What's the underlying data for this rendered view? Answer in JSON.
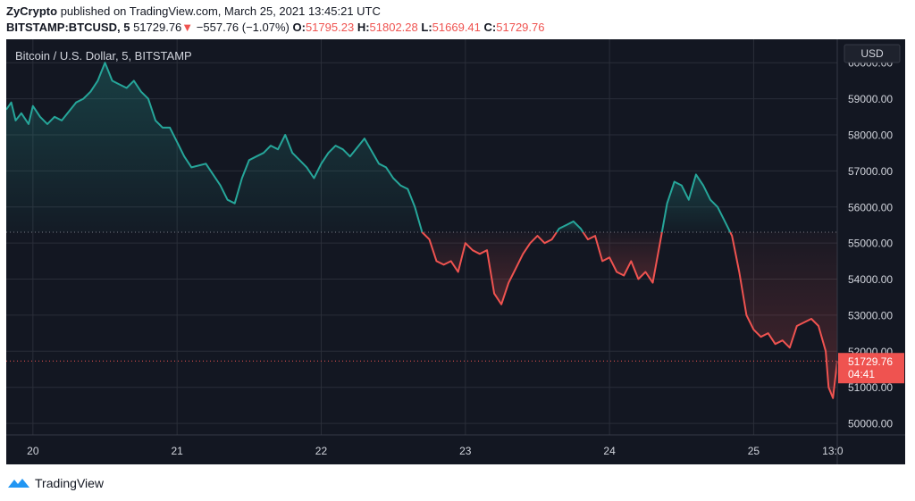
{
  "header": {
    "author": "ZyCrypto",
    "published_text": "published on TradingView.com, March 25, 2021 13:45:21 UTC"
  },
  "quote": {
    "symbol": "BITSTAMP:BTCUSD, 5",
    "last": "51729.76",
    "change_arrow": "▼",
    "change": "−557.76 (−1.07%)",
    "o_label": "O:",
    "o_value": "51795.23",
    "h_label": "H:",
    "h_value": "51802.28",
    "l_label": "L:",
    "l_value": "51669.41",
    "c_label": "C:",
    "c_value": "51729.76"
  },
  "footer": {
    "brand": "TradingView"
  },
  "colors": {
    "up": "#26a69a",
    "down": "#ef5350",
    "background": "#131722",
    "grid": "#2a2e39",
    "axis_text": "#d1d4dc"
  },
  "chart_data": {
    "type": "line",
    "title": "Bitcoin / U.S. Dollar, 5, BITSTAMP",
    "currency_label": "USD",
    "x_ticks": [
      "20",
      "21",
      "22",
      "23",
      "24",
      "25",
      "13:0"
    ],
    "x_tick_days": [
      0,
      1,
      2,
      3,
      4,
      5,
      5.548
    ],
    "x_range_days": [
      -0.185,
      5.58
    ],
    "ylim": [
      49680,
      60650
    ],
    "y_ticks": [
      50000,
      51000,
      52000,
      53000,
      54000,
      55000,
      56000,
      57000,
      58000,
      59000,
      60000
    ],
    "y_tick_labels": [
      "50000.00",
      "51000.00",
      "52000.00",
      "53000.00",
      "54000.00",
      "55000.00",
      "56000.00",
      "57000.00",
      "58000.00",
      "59000.00",
      "60000.00"
    ],
    "baseline": 55300,
    "last_value": 51729.76,
    "last_label": "51729.76",
    "countdown": "04:41",
    "grid": true,
    "series": [
      {
        "x_days": [
          -0.185,
          -0.15,
          -0.12,
          -0.08,
          -0.03,
          0.0,
          0.05,
          0.1,
          0.15,
          0.2,
          0.3,
          0.35,
          0.4,
          0.45,
          0.5,
          0.55,
          0.6,
          0.65,
          0.7,
          0.75,
          0.8,
          0.85,
          0.9,
          0.95,
          1.0,
          1.05,
          1.1,
          1.2,
          1.3,
          1.35,
          1.4,
          1.45,
          1.5,
          1.55,
          1.6,
          1.65,
          1.7,
          1.75,
          1.8,
          1.85,
          1.9,
          1.95,
          2.0,
          2.05,
          2.1,
          2.15,
          2.2,
          2.3,
          2.4,
          2.45,
          2.5,
          2.55,
          2.6,
          2.65,
          2.7,
          2.75,
          2.8,
          2.85,
          2.9,
          2.95,
          3.0,
          3.05,
          3.1,
          3.15,
          3.2,
          3.25,
          3.3,
          3.35,
          3.4,
          3.45,
          3.5,
          3.55,
          3.6,
          3.65,
          3.7,
          3.75,
          3.8,
          3.85,
          3.9,
          3.95,
          4.0,
          4.05,
          4.1,
          4.15,
          4.2,
          4.25,
          4.3,
          4.35,
          4.4,
          4.45,
          4.5,
          4.55,
          4.6,
          4.65,
          4.7,
          4.75,
          4.8,
          4.85,
          4.9,
          4.95,
          5.0,
          5.05,
          5.1,
          5.15,
          5.2,
          5.25,
          5.3,
          5.35,
          5.4,
          5.45,
          5.5,
          5.52,
          5.55,
          5.58
        ],
        "y": [
          58700,
          58900,
          58400,
          58600,
          58300,
          58800,
          58500,
          58300,
          58500,
          58400,
          58900,
          59000,
          59200,
          59500,
          60000,
          59500,
          59400,
          59300,
          59500,
          59200,
          59000,
          58400,
          58200,
          58200,
          57800,
          57400,
          57100,
          57200,
          56600,
          56200,
          56100,
          56800,
          57300,
          57400,
          57500,
          57700,
          57600,
          58000,
          57500,
          57300,
          57100,
          56800,
          57200,
          57500,
          57700,
          57600,
          57400,
          57900,
          57200,
          57100,
          56800,
          56600,
          56500,
          56000,
          55300,
          55100,
          54500,
          54400,
          54500,
          54200,
          55000,
          54800,
          54700,
          54800,
          53600,
          53300,
          53900,
          54300,
          54700,
          55000,
          55200,
          55000,
          55100,
          55400,
          55500,
          55600,
          55400,
          55100,
          55200,
          54500,
          54600,
          54200,
          54100,
          54500,
          54000,
          54200,
          53900,
          55000,
          56100,
          56700,
          56600,
          56200,
          56900,
          56600,
          56200,
          56000,
          55600,
          55200,
          54200,
          53000,
          52600,
          52400,
          52500,
          52200,
          52300,
          52100,
          52700,
          52800,
          52900,
          52700,
          52000,
          51000,
          50700,
          51730
        ]
      }
    ]
  }
}
